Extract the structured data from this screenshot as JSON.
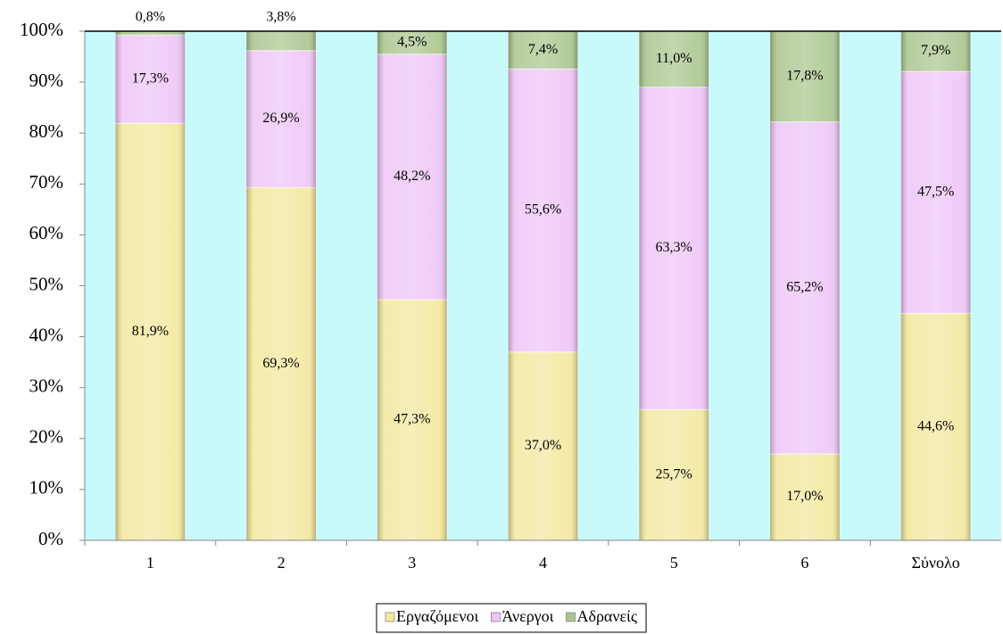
{
  "chart_data": {
    "type": "stacked_bar",
    "categories": [
      "1",
      "2",
      "3",
      "4",
      "5",
      "6",
      "Σύνολο"
    ],
    "series": [
      {
        "name": "Εργαζόμενοι",
        "color": "#f3e79c",
        "values": [
          81.9,
          69.3,
          47.3,
          37.0,
          25.7,
          17.0,
          44.6
        ],
        "value_labels": [
          "81,9%",
          "69,3%",
          "47,3%",
          "37,0%",
          "25,7%",
          "17,0%",
          "44,6%"
        ]
      },
      {
        "name": "Άνεργοι",
        "color": "#eec4f6",
        "values": [
          17.3,
          26.9,
          48.2,
          55.6,
          63.3,
          65.2,
          47.5
        ],
        "value_labels": [
          "17,3%",
          "26,9%",
          "48,2%",
          "55,6%",
          "63,3%",
          "65,2%",
          "47,5%"
        ]
      },
      {
        "name": "Αδρανείς",
        "color": "#a9c58d",
        "values": [
          0.8,
          3.8,
          4.5,
          7.4,
          11.0,
          17.8,
          7.9
        ],
        "value_labels": [
          "0,8%",
          "3,8%",
          "4,5%",
          "7,4%",
          "11,0%",
          "17,8%",
          "7,9%"
        ]
      }
    ],
    "ylim": [
      0,
      100
    ],
    "yticks": [
      {
        "value": 0,
        "label": "0%"
      },
      {
        "value": 10,
        "label": "10%"
      },
      {
        "value": 20,
        "label": "20%"
      },
      {
        "value": 30,
        "label": "30%"
      },
      {
        "value": 40,
        "label": "40%"
      },
      {
        "value": 50,
        "label": "50%"
      },
      {
        "value": 60,
        "label": "60%"
      },
      {
        "value": 70,
        "label": "70%"
      },
      {
        "value": 80,
        "label": "80%"
      },
      {
        "value": 90,
        "label": "90%"
      },
      {
        "value": 100,
        "label": "100%"
      }
    ],
    "grid": false,
    "legend": "bottom",
    "plot_background": "#c8fafc"
  }
}
